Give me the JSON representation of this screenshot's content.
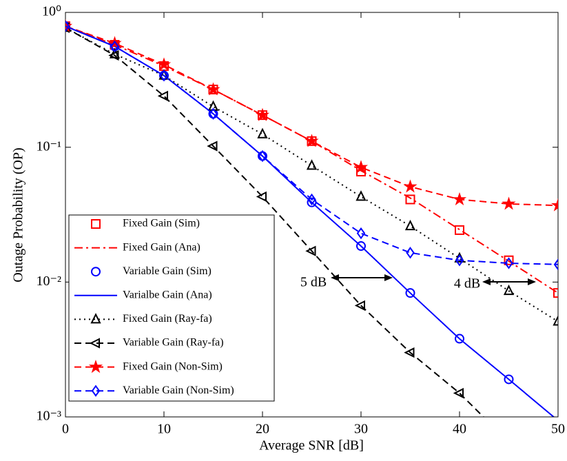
{
  "chart_data": {
    "type": "line",
    "xlabel": "Average SNR [dB]",
    "ylabel": "Outage Probability (OP)",
    "x": [
      0,
      5,
      10,
      15,
      20,
      25,
      30,
      35,
      40,
      45,
      50
    ],
    "xlim": [
      0,
      50
    ],
    "xticks": [
      0,
      10,
      20,
      30,
      40,
      50
    ],
    "ylim": [
      0.001,
      1
    ],
    "log_y": true,
    "yticks": [
      {
        "value": 1,
        "label": "10⁰"
      },
      {
        "value": 0.1,
        "label": "10⁻¹"
      },
      {
        "value": 0.01,
        "label": "10⁻²"
      },
      {
        "value": 0.001,
        "label": "10⁻³"
      }
    ],
    "legend": "lower left",
    "series": [
      {
        "name": "Fixed Gain (Sim)",
        "color": "#ff0000",
        "marker": "square",
        "dash": null,
        "values": [
          0.79,
          0.575,
          0.4,
          0.268,
          0.173,
          0.111,
          0.066,
          0.041,
          0.0243,
          0.0145,
          0.0083
        ]
      },
      {
        "name": "Fixed Gain (Ana)",
        "color": "#ff0000",
        "marker": null,
        "dash": "dashdot",
        "values": [
          0.79,
          0.575,
          0.4,
          0.268,
          0.173,
          0.111,
          0.067,
          0.042,
          0.0245,
          0.0143,
          0.0083
        ]
      },
      {
        "name": "Variable Gain (Sim)",
        "color": "#0000ff",
        "marker": "circle",
        "dash": null,
        "values": [
          0.79,
          0.56,
          0.34,
          0.177,
          0.086,
          0.039,
          0.0185,
          0.0083,
          0.0038,
          0.0019,
          null
        ]
      },
      {
        "name": "Varialbe Gain (Ana)",
        "color": "#0000ff",
        "marker": null,
        "dash": "solid",
        "values": [
          0.79,
          0.56,
          0.34,
          0.177,
          0.086,
          0.039,
          0.0185,
          0.0083,
          0.0038,
          0.0019,
          0.00094
        ]
      },
      {
        "name": "Fixed Gain (Ray-fa)",
        "color": "#000000",
        "marker": "triangle-up",
        "dash": "dot",
        "values": [
          0.77,
          0.49,
          0.34,
          0.2,
          0.125,
          0.073,
          0.043,
          0.026,
          0.015,
          0.0086,
          0.0051
        ]
      },
      {
        "name": "Variable Gain (Ray-fa)",
        "color": "#000000",
        "marker": "triangle-left",
        "dash": "dash",
        "values": [
          0.77,
          0.48,
          0.24,
          0.102,
          0.043,
          0.017,
          0.0067,
          0.003,
          0.0015,
          0.00065,
          null
        ]
      },
      {
        "name": "Fixed Gain (Non-Sim)",
        "color": "#ff0000",
        "marker": "star",
        "dash": "dash",
        "values": [
          0.79,
          0.59,
          0.41,
          0.268,
          0.173,
          0.111,
          0.071,
          0.051,
          0.041,
          0.038,
          0.037
        ]
      },
      {
        "name": "Variable Gain (Non-Sim)",
        "color": "#0000ff",
        "marker": "diamond",
        "dash": "dash",
        "values": [
          0.79,
          0.56,
          0.34,
          0.177,
          0.086,
          0.041,
          0.023,
          0.0165,
          0.0145,
          0.0138,
          0.0135
        ]
      }
    ],
    "annotations": [
      "5 dB",
      "4 dB"
    ]
  }
}
